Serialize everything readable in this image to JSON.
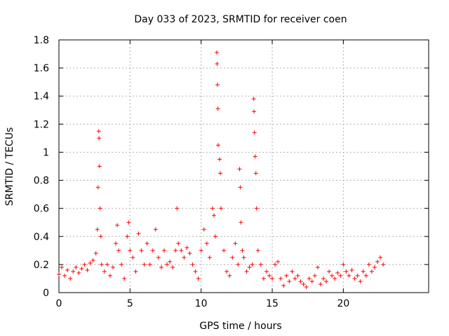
{
  "chart_data": {
    "type": "scatter",
    "title": "Day 033 of 2023, SRMTID for receiver coen",
    "xlabel": "GPS time / hours",
    "ylabel": "SRMTID / TECUs",
    "xlim": [
      0,
      26
    ],
    "ylim": [
      0,
      1.8
    ],
    "x_ticks": [
      0,
      5,
      10,
      15,
      20
    ],
    "x_tick_labels": [
      "0",
      "5",
      "10",
      "15",
      "20"
    ],
    "y_ticks": [
      0,
      0.2,
      0.4,
      0.6,
      0.8,
      1.0,
      1.2,
      1.4,
      1.6,
      1.8
    ],
    "y_tick_labels": [
      "0",
      "0.2",
      "0.4",
      "0.6",
      "0.8",
      "1",
      "1.2",
      "1.4",
      "1.6",
      "1.8"
    ],
    "grid": true,
    "marker": "+",
    "color": "#ff0000",
    "series": [
      {
        "name": "SRMTID",
        "points": [
          [
            0.0,
            0.13
          ],
          [
            0.2,
            0.18
          ],
          [
            0.4,
            0.12
          ],
          [
            0.6,
            0.16
          ],
          [
            0.8,
            0.1
          ],
          [
            1.0,
            0.15
          ],
          [
            1.2,
            0.18
          ],
          [
            1.4,
            0.14
          ],
          [
            1.6,
            0.17
          ],
          [
            1.8,
            0.2
          ],
          [
            2.0,
            0.16
          ],
          [
            2.2,
            0.21
          ],
          [
            2.4,
            0.23
          ],
          [
            2.6,
            0.28
          ],
          [
            2.7,
            0.45
          ],
          [
            2.75,
            0.75
          ],
          [
            2.8,
            1.15
          ],
          [
            2.82,
            1.1
          ],
          [
            2.85,
            0.9
          ],
          [
            2.9,
            0.6
          ],
          [
            2.95,
            0.4
          ],
          [
            3.0,
            0.2
          ],
          [
            3.2,
            0.15
          ],
          [
            3.4,
            0.2
          ],
          [
            3.6,
            0.12
          ],
          [
            3.8,
            0.18
          ],
          [
            4.0,
            0.35
          ],
          [
            4.1,
            0.48
          ],
          [
            4.2,
            0.3
          ],
          [
            4.4,
            0.2
          ],
          [
            4.6,
            0.1
          ],
          [
            4.8,
            0.4
          ],
          [
            4.9,
            0.5
          ],
          [
            5.0,
            0.3
          ],
          [
            5.2,
            0.25
          ],
          [
            5.4,
            0.15
          ],
          [
            5.6,
            0.42
          ],
          [
            5.8,
            0.3
          ],
          [
            6.0,
            0.2
          ],
          [
            6.2,
            0.35
          ],
          [
            6.4,
            0.2
          ],
          [
            6.6,
            0.3
          ],
          [
            6.8,
            0.45
          ],
          [
            7.0,
            0.25
          ],
          [
            7.2,
            0.18
          ],
          [
            7.4,
            0.3
          ],
          [
            7.6,
            0.2
          ],
          [
            7.8,
            0.22
          ],
          [
            8.0,
            0.18
          ],
          [
            8.2,
            0.3
          ],
          [
            8.3,
            0.6
          ],
          [
            8.4,
            0.35
          ],
          [
            8.6,
            0.3
          ],
          [
            8.8,
            0.25
          ],
          [
            9.0,
            0.32
          ],
          [
            9.2,
            0.28
          ],
          [
            9.4,
            0.2
          ],
          [
            9.6,
            0.15
          ],
          [
            9.8,
            0.1
          ],
          [
            10.0,
            0.3
          ],
          [
            10.2,
            0.45
          ],
          [
            10.4,
            0.35
          ],
          [
            10.6,
            0.25
          ],
          [
            10.8,
            0.6
          ],
          [
            10.9,
            0.55
          ],
          [
            11.0,
            0.4
          ],
          [
            11.1,
            1.71
          ],
          [
            11.12,
            1.63
          ],
          [
            11.15,
            1.48
          ],
          [
            11.18,
            1.31
          ],
          [
            11.2,
            1.05
          ],
          [
            11.3,
            0.95
          ],
          [
            11.35,
            0.85
          ],
          [
            11.4,
            0.6
          ],
          [
            11.6,
            0.3
          ],
          [
            11.8,
            0.15
          ],
          [
            12.0,
            0.12
          ],
          [
            12.2,
            0.25
          ],
          [
            12.4,
            0.35
          ],
          [
            12.6,
            0.2
          ],
          [
            12.7,
            0.88
          ],
          [
            12.75,
            0.75
          ],
          [
            12.8,
            0.5
          ],
          [
            12.9,
            0.3
          ],
          [
            13.0,
            0.25
          ],
          [
            13.2,
            0.15
          ],
          [
            13.4,
            0.18
          ],
          [
            13.6,
            0.2
          ],
          [
            13.7,
            1.38
          ],
          [
            13.72,
            1.29
          ],
          [
            13.75,
            1.14
          ],
          [
            13.8,
            0.97
          ],
          [
            13.85,
            0.85
          ],
          [
            13.9,
            0.6
          ],
          [
            14.0,
            0.3
          ],
          [
            14.2,
            0.2
          ],
          [
            14.4,
            0.1
          ],
          [
            14.6,
            0.15
          ],
          [
            14.8,
            0.12
          ],
          [
            15.0,
            0.1
          ],
          [
            15.2,
            0.2
          ],
          [
            15.4,
            0.22
          ],
          [
            15.6,
            0.1
          ],
          [
            15.8,
            0.05
          ],
          [
            16.0,
            0.12
          ],
          [
            16.2,
            0.08
          ],
          [
            16.4,
            0.15
          ],
          [
            16.6,
            0.1
          ],
          [
            16.8,
            0.12
          ],
          [
            17.0,
            0.08
          ],
          [
            17.2,
            0.06
          ],
          [
            17.4,
            0.04
          ],
          [
            17.6,
            0.1
          ],
          [
            17.8,
            0.08
          ],
          [
            18.0,
            0.12
          ],
          [
            18.2,
            0.18
          ],
          [
            18.4,
            0.06
          ],
          [
            18.6,
            0.1
          ],
          [
            18.8,
            0.08
          ],
          [
            19.0,
            0.15
          ],
          [
            19.2,
            0.12
          ],
          [
            19.4,
            0.1
          ],
          [
            19.6,
            0.14
          ],
          [
            19.8,
            0.12
          ],
          [
            20.0,
            0.2
          ],
          [
            20.2,
            0.15
          ],
          [
            20.4,
            0.12
          ],
          [
            20.6,
            0.16
          ],
          [
            20.8,
            0.1
          ],
          [
            21.0,
            0.12
          ],
          [
            21.2,
            0.08
          ],
          [
            21.4,
            0.15
          ],
          [
            21.6,
            0.12
          ],
          [
            21.8,
            0.2
          ],
          [
            22.0,
            0.15
          ],
          [
            22.2,
            0.18
          ],
          [
            22.4,
            0.22
          ],
          [
            22.6,
            0.25
          ],
          [
            22.8,
            0.2
          ]
        ]
      }
    ]
  }
}
